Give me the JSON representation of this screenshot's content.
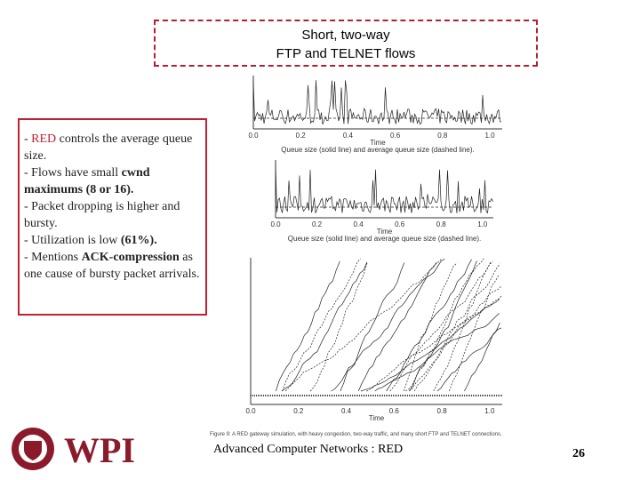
{
  "title": [
    "Short, two-way",
    "FTP and TELNET flows"
  ],
  "bullets": [
    [
      "- ",
      "RED",
      " controls the average queue size."
    ],
    [
      "- Flows have small ",
      "cwnd maximums (8 or 16)."
    ],
    [
      "- Packet dropping is higher and bursty."
    ],
    [
      "- Utilization is low ",
      "(61%)."
    ],
    [
      "- Mentions ",
      "ACK-compression",
      " as one cause of bursty packet arrivals."
    ]
  ],
  "figure": {
    "plots": [
      {
        "xticks": [
          "0.0",
          "0.2",
          "0.4",
          "0.6",
          "0.8",
          "1.0"
        ],
        "xlabel": "Time",
        "caption": "Queue size (solid line) and average queue size (dashed line)."
      },
      {
        "xticks": [
          "0.0",
          "0.2",
          "0.4",
          "0.6",
          "0.8",
          "1.0"
        ],
        "xlabel": "Time",
        "caption": "Queue size (solid line) and average queue size (dashed line)."
      },
      {
        "xticks": [
          "0.0",
          "0.2",
          "0.4",
          "0.6",
          "0.8",
          "1.0"
        ],
        "xlabel": "Time",
        "caption": ""
      }
    ],
    "caption": "Figure 9: A RED gateway simulation, with heavy congestion, two-way traffic, and many short FTP and TELNET connections."
  },
  "footer": "Advanced Computer Networks : RED",
  "page_number": "26",
  "logo": "WPI"
}
